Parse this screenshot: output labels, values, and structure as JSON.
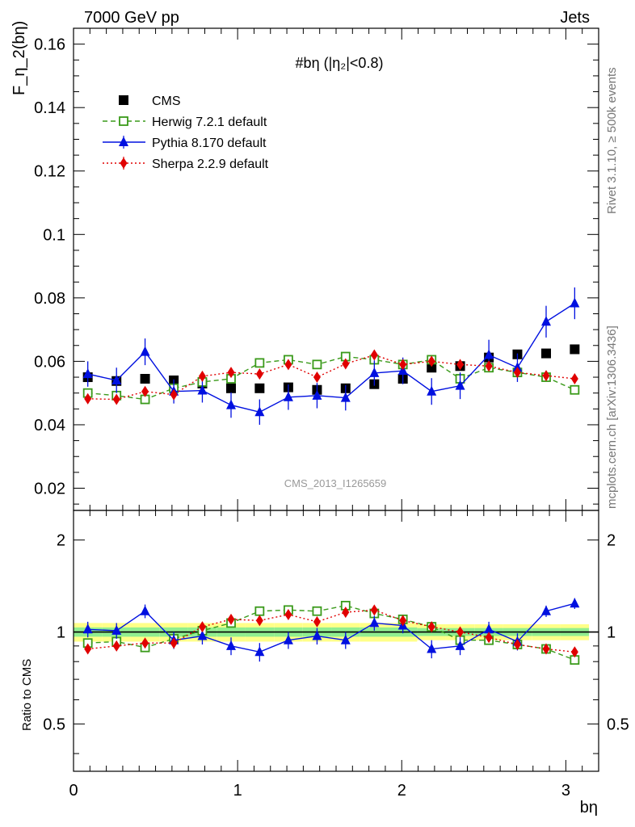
{
  "header": {
    "left": "7000 GeV pp",
    "right": "Jets"
  },
  "side_text": {
    "top": "Rivet 3.1.10, ≥ 500k events",
    "bottom": "mcplots.cern.ch [arXiv:1306.3436]"
  },
  "plot_title": "#bη (|η₂|<0.8)",
  "watermark": "CMS_2013_I1265659",
  "colors": {
    "CMS": "#000000",
    "Herwig": "#3a9a1a",
    "Pythia": "#0010e0",
    "Sherpa": "#e00000",
    "band_outer": "#ffff88",
    "band_inner": "#90ee90"
  },
  "chart_data": [
    {
      "type": "scatter",
      "panel": "main",
      "ylabel": "F_η_2(bη)",
      "xlabel": "bη",
      "xlim": [
        0,
        3.2
      ],
      "ylim": [
        0.013,
        0.165
      ],
      "yticks": [
        "0.02",
        "0.04",
        "0.06",
        "0.08",
        "0.1",
        "0.12",
        "0.14",
        "0.16"
      ],
      "xticks": [
        "0",
        "1",
        "2",
        "3"
      ],
      "legend_position": "top-left",
      "x": [
        0.087,
        0.262,
        0.436,
        0.611,
        0.785,
        0.96,
        1.134,
        1.309,
        1.484,
        1.658,
        1.833,
        2.007,
        2.182,
        2.356,
        2.531,
        2.705,
        2.88,
        3.054
      ],
      "series": [
        {
          "name": "CMS",
          "marker": "square",
          "values": [
            0.055,
            0.0538,
            0.0545,
            0.054,
            0.053,
            0.0515,
            0.0515,
            0.0518,
            0.051,
            0.0515,
            0.0528,
            0.0545,
            0.058,
            0.0585,
            0.0612,
            0.0622,
            0.0625,
            0.0638
          ]
        },
        {
          "name": "Herwig 7.2.1 default",
          "marker": "open-square",
          "line": "dashed",
          "values": [
            0.05,
            0.0492,
            0.048,
            0.0515,
            0.0535,
            0.0545,
            0.0595,
            0.0605,
            0.059,
            0.0615,
            0.0605,
            0.059,
            0.0605,
            0.0545,
            0.058,
            0.0565,
            0.055,
            0.051
          ]
        },
        {
          "name": "Pythia 8.170 default",
          "marker": "triangle",
          "line": "solid",
          "values": [
            0.056,
            0.054,
            0.063,
            0.0505,
            0.0508,
            0.0462,
            0.044,
            0.0487,
            0.0492,
            0.0485,
            0.0563,
            0.057,
            0.0505,
            0.0523,
            0.062,
            0.058,
            0.0725,
            0.0783
          ],
          "errors": [
            0.004,
            0.004,
            0.0042,
            0.0038,
            0.0038,
            0.004,
            0.004,
            0.004,
            0.004,
            0.004,
            0.004,
            0.0042,
            0.0042,
            0.0042,
            0.0048,
            0.0045,
            0.005,
            0.005
          ]
        },
        {
          "name": "Sherpa 2.2.9 default",
          "marker": "diamond",
          "line": "dotted",
          "values": [
            0.0482,
            0.048,
            0.0505,
            0.0495,
            0.0553,
            0.0565,
            0.056,
            0.059,
            0.055,
            0.0592,
            0.062,
            0.059,
            0.06,
            0.059,
            0.0585,
            0.0565,
            0.0555,
            0.0545
          ],
          "errors": [
            0.0012,
            0.0012,
            0.0012,
            0.0012,
            0.0012,
            0.0012,
            0.0012,
            0.0012,
            0.0012,
            0.0012,
            0.0012,
            0.0012,
            0.0012,
            0.0012,
            0.0012,
            0.0012,
            0.0012,
            0.0012
          ]
        }
      ]
    },
    {
      "type": "scatter",
      "panel": "ratio",
      "ylabel": "Ratio to CMS",
      "xlabel": "bη",
      "xlim": [
        0,
        3.2
      ],
      "ylim": [
        0.35,
        2.5
      ],
      "ylog": true,
      "yticks": [
        "0.5",
        "1",
        "2"
      ],
      "band_outer_halfwidth": [
        0.07,
        0.07,
        0.07,
        0.07,
        0.07,
        0.07,
        0.07,
        0.07,
        0.07,
        0.07,
        0.07,
        0.07,
        0.06,
        0.06,
        0.06,
        0.06,
        0.06,
        0.06
      ],
      "band_inner_halfwidth": [
        0.035,
        0.035,
        0.035,
        0.035,
        0.035,
        0.035,
        0.035,
        0.035,
        0.035,
        0.035,
        0.035,
        0.035,
        0.03,
        0.03,
        0.03,
        0.03,
        0.03,
        0.03
      ],
      "series": [
        {
          "name": "Herwig 7.2.1 default",
          "marker": "open-square",
          "line": "dashed",
          "values": [
            0.92,
            0.93,
            0.89,
            0.95,
            1.01,
            1.07,
            1.17,
            1.18,
            1.17,
            1.22,
            1.15,
            1.1,
            1.04,
            0.94,
            0.94,
            0.91,
            0.88,
            0.81
          ]
        },
        {
          "name": "Pythia 8.170 default",
          "marker": "triangle",
          "line": "solid",
          "values": [
            1.02,
            1.01,
            1.17,
            0.94,
            0.97,
            0.9,
            0.86,
            0.94,
            0.97,
            0.94,
            1.07,
            1.05,
            0.88,
            0.9,
            1.02,
            0.93,
            1.17,
            1.24
          ],
          "errors": [
            0.06,
            0.06,
            0.06,
            0.06,
            0.06,
            0.06,
            0.06,
            0.06,
            0.06,
            0.06,
            0.06,
            0.06,
            0.06,
            0.06,
            0.06,
            0.06,
            0.05,
            0.05
          ]
        },
        {
          "name": "Sherpa 2.2.9 default",
          "marker": "diamond",
          "line": "dotted",
          "values": [
            0.88,
            0.9,
            0.92,
            0.92,
            1.04,
            1.1,
            1.09,
            1.14,
            1.08,
            1.16,
            1.18,
            1.09,
            1.04,
            1.0,
            0.96,
            0.91,
            0.88,
            0.86
          ],
          "errors": [
            0.02,
            0.02,
            0.02,
            0.02,
            0.02,
            0.02,
            0.02,
            0.02,
            0.02,
            0.02,
            0.02,
            0.02,
            0.02,
            0.02,
            0.02,
            0.02,
            0.02,
            0.02
          ]
        }
      ]
    }
  ]
}
